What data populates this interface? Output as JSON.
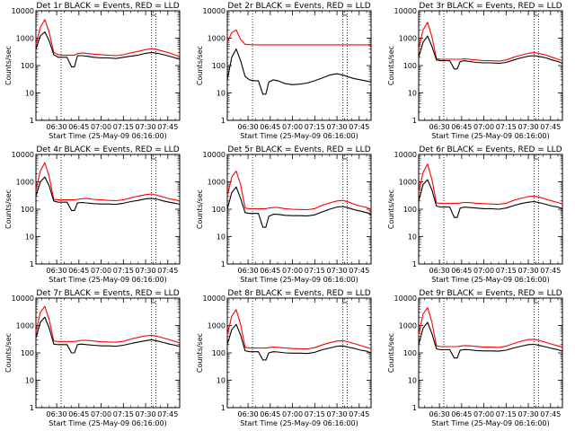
{
  "figure": {
    "ylabel": "Counts/sec",
    "xlabel": "Start Time (25-May-09 06:16:00)",
    "colors": {
      "events": "#000000",
      "lld": "#ff0000"
    },
    "x_ticks": [
      "06:30",
      "06:45",
      "07:00",
      "07:15",
      "07:30",
      "07:45"
    ],
    "y_ticks": [
      "1",
      "10",
      "100",
      "1000",
      "10000"
    ]
  },
  "chart_data": [
    {
      "type": "line",
      "title": "Det 1r BLACK = Events, RED = LLD",
      "xlabel": "Start Time (25-May-09 06:16:00)",
      "ylabel": "Counts/sec",
      "xlim": [
        "06:16",
        "07:53"
      ],
      "ylim": [
        1,
        10000
      ],
      "yscale": "log",
      "vlines": [
        "06:33",
        "07:34",
        "07:37"
      ],
      "x": [
        "06:16",
        "06:19",
        "06:22",
        "06:25",
        "06:28",
        "06:31",
        "06:34",
        "06:37",
        "06:40",
        "06:42",
        "06:44",
        "06:47",
        "06:50",
        "06:55",
        "07:00",
        "07:05",
        "07:10",
        "07:15",
        "07:20",
        "07:25",
        "07:30",
        "07:34",
        "07:38",
        "07:42",
        "07:46",
        "07:50",
        "07:53"
      ],
      "series": [
        {
          "name": "Events",
          "values": [
            400,
            1200,
            1700,
            800,
            250,
            200,
            200,
            200,
            90,
            90,
            230,
            230,
            220,
            200,
            190,
            190,
            180,
            200,
            220,
            240,
            280,
            300,
            280,
            250,
            220,
            190,
            170
          ]
        },
        {
          "name": "LLD",
          "values": [
            600,
            2500,
            4800,
            1600,
            300,
            250,
            240,
            240,
            240,
            240,
            270,
            290,
            280,
            260,
            250,
            240,
            230,
            250,
            290,
            330,
            380,
            420,
            380,
            330,
            290,
            240,
            220
          ]
        }
      ]
    },
    {
      "type": "line",
      "title": "Det 2r BLACK = Events, RED = LLD",
      "xlabel": "Start Time (25-May-09 06:16:00)",
      "ylabel": "Counts/sec",
      "xlim": [
        "06:16",
        "07:53"
      ],
      "ylim": [
        1,
        10000
      ],
      "yscale": "log",
      "vlines": [
        "06:33",
        "07:34",
        "07:37"
      ],
      "x": [
        "06:16",
        "06:19",
        "06:22",
        "06:25",
        "06:28",
        "06:31",
        "06:34",
        "06:37",
        "06:40",
        "06:42",
        "06:44",
        "06:47",
        "06:50",
        "06:55",
        "07:00",
        "07:05",
        "07:10",
        "07:15",
        "07:20",
        "07:25",
        "07:30",
        "07:34",
        "07:38",
        "07:42",
        "07:46",
        "07:50",
        "07:53"
      ],
      "series": [
        {
          "name": "Events",
          "values": [
            30,
            200,
            400,
            150,
            40,
            30,
            28,
            28,
            9,
            9,
            25,
            30,
            28,
            22,
            20,
            21,
            23,
            28,
            35,
            45,
            50,
            45,
            38,
            33,
            30,
            27,
            25
          ]
        },
        {
          "name": "LLD",
          "values": [
            700,
            1600,
            2000,
            900,
            600,
            580,
            570,
            570,
            570,
            570,
            570,
            570,
            570,
            570,
            570,
            570,
            570,
            570,
            570,
            570,
            570,
            570,
            570,
            570,
            570,
            570,
            560
          ]
        }
      ]
    },
    {
      "type": "line",
      "title": "Det 3r BLACK = Events, RED = LLD",
      "xlabel": "Start Time (25-May-09 06:16:00)",
      "ylabel": "Counts/sec",
      "xlim": [
        "06:16",
        "07:53"
      ],
      "ylim": [
        1,
        10000
      ],
      "yscale": "log",
      "vlines": [
        "06:33",
        "07:34",
        "07:37"
      ],
      "x": [
        "06:16",
        "06:19",
        "06:22",
        "06:25",
        "06:28",
        "06:31",
        "06:34",
        "06:37",
        "06:40",
        "06:42",
        "06:44",
        "06:47",
        "06:50",
        "06:55",
        "07:00",
        "07:05",
        "07:10",
        "07:15",
        "07:20",
        "07:25",
        "07:30",
        "07:34",
        "07:38",
        "07:42",
        "07:46",
        "07:50",
        "07:53"
      ],
      "series": [
        {
          "name": "Events",
          "values": [
            200,
            700,
            1200,
            500,
            160,
            150,
            150,
            150,
            75,
            75,
            140,
            150,
            140,
            130,
            125,
            125,
            120,
            130,
            160,
            190,
            220,
            230,
            210,
            190,
            160,
            140,
            120
          ]
        },
        {
          "name": "LLD",
          "values": [
            400,
            2000,
            3800,
            1100,
            180,
            170,
            170,
            170,
            170,
            170,
            170,
            175,
            170,
            160,
            150,
            150,
            145,
            160,
            200,
            240,
            280,
            300,
            270,
            240,
            200,
            170,
            150
          ]
        }
      ]
    },
    {
      "type": "line",
      "title": "Det 4r BLACK = Events, RED = LLD",
      "xlabel": "Start Time (25-May-09 06:16:00)",
      "ylabel": "Counts/sec",
      "xlim": [
        "06:16",
        "07:53"
      ],
      "ylim": [
        1,
        10000
      ],
      "yscale": "log",
      "vlines": [
        "06:33",
        "07:34",
        "07:37"
      ],
      "x": [
        "06:16",
        "06:19",
        "06:22",
        "06:25",
        "06:28",
        "06:31",
        "06:34",
        "06:37",
        "06:40",
        "06:42",
        "06:44",
        "06:47",
        "06:50",
        "06:55",
        "07:00",
        "07:05",
        "07:10",
        "07:15",
        "07:20",
        "07:25",
        "07:30",
        "07:34",
        "07:38",
        "07:42",
        "07:46",
        "07:50",
        "07:53"
      ],
      "series": [
        {
          "name": "Events",
          "values": [
            300,
            1000,
            1500,
            700,
            200,
            180,
            180,
            180,
            90,
            90,
            170,
            175,
            170,
            160,
            155,
            155,
            150,
            165,
            190,
            210,
            240,
            250,
            230,
            200,
            180,
            165,
            150
          ]
        },
        {
          "name": "LLD",
          "values": [
            500,
            2500,
            5000,
            1500,
            230,
            220,
            220,
            220,
            220,
            220,
            230,
            240,
            250,
            230,
            220,
            210,
            205,
            220,
            260,
            300,
            340,
            360,
            320,
            280,
            240,
            220,
            200
          ]
        }
      ]
    },
    {
      "type": "line",
      "title": "Det 5r BLACK = Events, RED = LLD",
      "xlabel": "Start Time (25-May-09 06:16:00)",
      "ylabel": "Counts/sec",
      "xlim": [
        "06:16",
        "07:53"
      ],
      "ylim": [
        1,
        10000
      ],
      "yscale": "log",
      "vlines": [
        "06:33",
        "07:34",
        "07:37"
      ],
      "x": [
        "06:16",
        "06:19",
        "06:22",
        "06:25",
        "06:28",
        "06:31",
        "06:34",
        "06:37",
        "06:40",
        "06:42",
        "06:44",
        "06:47",
        "06:50",
        "06:55",
        "07:00",
        "07:05",
        "07:10",
        "07:15",
        "07:20",
        "07:25",
        "07:30",
        "07:34",
        "07:38",
        "07:42",
        "07:46",
        "07:50",
        "07:53"
      ],
      "series": [
        {
          "name": "Events",
          "values": [
            100,
            400,
            650,
            250,
            75,
            70,
            70,
            70,
            22,
            22,
            55,
            65,
            65,
            60,
            58,
            58,
            57,
            62,
            80,
            100,
            120,
            125,
            110,
            95,
            85,
            75,
            65
          ]
        },
        {
          "name": "LLD",
          "values": [
            300,
            1500,
            2500,
            800,
            110,
            105,
            105,
            105,
            105,
            105,
            110,
            115,
            115,
            105,
            100,
            98,
            96,
            105,
            140,
            170,
            200,
            210,
            180,
            150,
            130,
            115,
            100
          ]
        }
      ]
    },
    {
      "type": "line",
      "title": "Det 6r BLACK = Events, RED = LLD",
      "xlabel": "Start Time (25-May-09 06:16:00)",
      "ylabel": "Counts/sec",
      "xlim": [
        "06:16",
        "07:53"
      ],
      "ylim": [
        1,
        10000
      ],
      "yscale": "log",
      "vlines": [
        "06:33",
        "07:34",
        "07:37"
      ],
      "x": [
        "06:16",
        "06:19",
        "06:22",
        "06:25",
        "06:28",
        "06:31",
        "06:34",
        "06:37",
        "06:40",
        "06:42",
        "06:44",
        "06:47",
        "06:50",
        "06:55",
        "07:00",
        "07:05",
        "07:10",
        "07:15",
        "07:20",
        "07:25",
        "07:30",
        "07:34",
        "07:38",
        "07:42",
        "07:46",
        "07:50",
        "07:53"
      ],
      "series": [
        {
          "name": "Events",
          "values": [
            200,
            800,
            1200,
            500,
            130,
            120,
            120,
            120,
            50,
            50,
            110,
            120,
            115,
            110,
            105,
            105,
            100,
            110,
            135,
            160,
            180,
            190,
            170,
            150,
            130,
            120,
            105
          ]
        },
        {
          "name": "LLD",
          "values": [
            400,
            2200,
            4500,
            1200,
            170,
            165,
            165,
            165,
            165,
            165,
            170,
            175,
            175,
            165,
            160,
            155,
            150,
            165,
            210,
            250,
            290,
            300,
            270,
            230,
            200,
            175,
            155
          ]
        }
      ]
    },
    {
      "type": "line",
      "title": "Det 7r BLACK = Events, RED = LLD",
      "xlabel": "Start Time (25-May-09 06:16:00)",
      "ylabel": "Counts/sec",
      "xlim": [
        "06:16",
        "07:53"
      ],
      "ylim": [
        1,
        10000
      ],
      "yscale": "log",
      "vlines": [
        "06:33",
        "07:34",
        "07:37"
      ],
      "x": [
        "06:16",
        "06:19",
        "06:22",
        "06:25",
        "06:28",
        "06:31",
        "06:34",
        "06:37",
        "06:40",
        "06:42",
        "06:44",
        "06:47",
        "06:50",
        "06:55",
        "07:00",
        "07:05",
        "07:10",
        "07:15",
        "07:20",
        "07:25",
        "07:30",
        "07:34",
        "07:38",
        "07:42",
        "07:46",
        "07:50",
        "07:53"
      ],
      "series": [
        {
          "name": "Events",
          "values": [
            350,
            1300,
            2000,
            800,
            210,
            200,
            200,
            200,
            100,
            100,
            200,
            210,
            200,
            190,
            180,
            180,
            175,
            190,
            220,
            250,
            280,
            300,
            270,
            240,
            210,
            190,
            170
          ]
        },
        {
          "name": "LLD",
          "values": [
            600,
            3000,
            5000,
            1600,
            270,
            260,
            260,
            260,
            260,
            260,
            270,
            285,
            285,
            270,
            255,
            250,
            245,
            265,
            320,
            370,
            420,
            440,
            400,
            350,
            300,
            260,
            230
          ]
        }
      ]
    },
    {
      "type": "line",
      "title": "Det 8r BLACK = Events, RED = LLD",
      "xlabel": "Start Time (25-May-09 06:16:00)",
      "ylabel": "Counts/sec",
      "xlim": [
        "06:16",
        "07:53"
      ],
      "ylim": [
        1,
        10000
      ],
      "yscale": "log",
      "vlines": [
        "06:33",
        "07:34",
        "07:37"
      ],
      "x": [
        "06:16",
        "06:19",
        "06:22",
        "06:25",
        "06:28",
        "06:31",
        "06:34",
        "06:37",
        "06:40",
        "06:42",
        "06:44",
        "06:47",
        "06:50",
        "06:55",
        "07:00",
        "07:05",
        "07:10",
        "07:15",
        "07:20",
        "07:25",
        "07:30",
        "07:34",
        "07:38",
        "07:42",
        "07:46",
        "07:50",
        "07:53"
      ],
      "series": [
        {
          "name": "Events",
          "values": [
            200,
            700,
            1100,
            450,
            120,
            110,
            110,
            110,
            55,
            55,
            100,
            110,
            108,
            100,
            98,
            98,
            95,
            105,
            130,
            150,
            175,
            180,
            160,
            145,
            125,
            115,
            100
          ]
        },
        {
          "name": "LLD",
          "values": [
            450,
            2200,
            3800,
            1100,
            160,
            150,
            150,
            150,
            150,
            150,
            155,
            162,
            160,
            150,
            145,
            142,
            140,
            155,
            195,
            235,
            270,
            280,
            250,
            215,
            185,
            160,
            140
          ]
        }
      ]
    },
    {
      "type": "line",
      "title": "Det 9r BLACK = Events, RED = LLD",
      "xlabel": "Start Time (25-May-09 06:16:00)",
      "ylabel": "Counts/sec",
      "xlim": [
        "06:16",
        "07:53"
      ],
      "ylim": [
        1,
        10000
      ],
      "yscale": "log",
      "vlines": [
        "06:33",
        "07:34",
        "07:37"
      ],
      "x": [
        "06:16",
        "06:19",
        "06:22",
        "06:25",
        "06:28",
        "06:31",
        "06:34",
        "06:37",
        "06:40",
        "06:42",
        "06:44",
        "06:47",
        "06:50",
        "06:55",
        "07:00",
        "07:05",
        "07:10",
        "07:15",
        "07:20",
        "07:25",
        "07:30",
        "07:34",
        "07:38",
        "07:42",
        "07:46",
        "07:50",
        "07:53"
      ],
      "series": [
        {
          "name": "Events",
          "values": [
            200,
            800,
            1300,
            500,
            140,
            130,
            130,
            130,
            65,
            65,
            125,
            132,
            130,
            122,
            118,
            118,
            115,
            125,
            150,
            175,
            200,
            205,
            185,
            165,
            145,
            130,
            115
          ]
        },
        {
          "name": "LLD",
          "values": [
            450,
            2600,
            4500,
            1300,
            180,
            170,
            170,
            170,
            170,
            170,
            178,
            185,
            182,
            172,
            165,
            162,
            158,
            175,
            220,
            265,
            305,
            315,
            280,
            240,
            205,
            180,
            160
          ]
        }
      ]
    }
  ]
}
